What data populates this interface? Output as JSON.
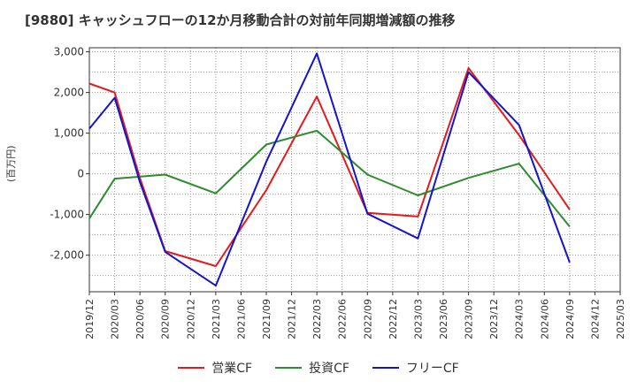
{
  "title": "[9880]  キャッシュフローの12か月移動合計の対前年同期増減額の推移",
  "chart_data": {
    "type": "line",
    "title": "[9880]  キャッシュフローの12か月移動合計の対前年同期増減額の推移",
    "ylabel": "(百万円)",
    "xlabel": "",
    "ylim": [
      -2900,
      3100
    ],
    "yticks": [
      3000,
      2000,
      1000,
      0,
      -1000,
      -2000
    ],
    "ytick_labels": [
      "3,000",
      "2,000",
      "1,000",
      "0",
      "-1,000",
      "-2,000"
    ],
    "x": [
      "2019/12",
      "2020/03",
      "2020/06",
      "2020/09",
      "2020/12",
      "2021/03",
      "2021/06",
      "2021/09",
      "2021/12",
      "2022/03",
      "2022/06",
      "2022/09",
      "2022/12",
      "2023/03",
      "2023/06",
      "2023/09",
      "2023/12",
      "2024/03",
      "2024/06",
      "2024/09",
      "2024/12",
      "2025/03"
    ],
    "grid": true,
    "legend_position": "bottom",
    "series": [
      {
        "name": "営業CF",
        "color": "#e41a1c",
        "values": [
          2220,
          2000,
          -100,
          -1900,
          null,
          -2270,
          null,
          -400,
          null,
          1900,
          null,
          -960,
          null,
          -1050,
          null,
          2600,
          null,
          950,
          null,
          -880,
          null,
          null
        ]
      },
      {
        "name": "投資CF",
        "color": "#2e8b2e",
        "values": [
          -1100,
          -120,
          null,
          -20,
          null,
          -480,
          null,
          720,
          null,
          1060,
          null,
          -20,
          null,
          -530,
          null,
          -100,
          null,
          250,
          null,
          -1300,
          null,
          null
        ]
      },
      {
        "name": "フリーCF",
        "color": "#1414cc",
        "values": [
          1110,
          1870,
          -200,
          -1920,
          null,
          -2750,
          null,
          300,
          null,
          2960,
          null,
          -980,
          null,
          -1590,
          null,
          2500,
          null,
          1200,
          null,
          -2180,
          null,
          null
        ]
      }
    ]
  }
}
